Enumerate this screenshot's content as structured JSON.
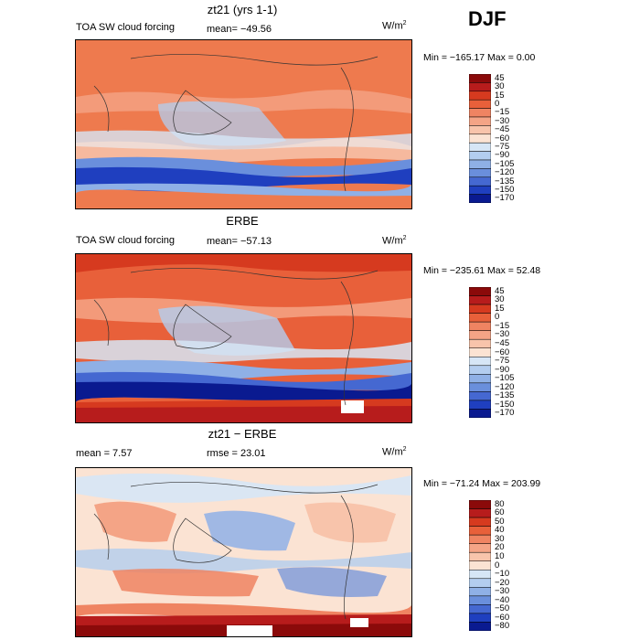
{
  "season": "DJF",
  "panels": [
    {
      "id": "model",
      "title": "zt21 (yrs 1-1)",
      "left_label": "TOA SW cloud forcing",
      "mid_label": "mean=  −49.56",
      "units": "W/m",
      "units_exp": "2",
      "minmax": "Min = −165.17 Max =    0.00",
      "levels": [
        "45",
        "30",
        "15",
        "0",
        "−15",
        "−30",
        "−45",
        "−60",
        "−75",
        "−90",
        "−105",
        "−120",
        "−135",
        "−150",
        "−170"
      ],
      "colors": [
        "#8b0a0a",
        "#b71c1c",
        "#d63a1f",
        "#e8603a",
        "#ef8462",
        "#f4a486",
        "#f8c4ab",
        "#fbe3d3",
        "#d6e6f6",
        "#b3cdef",
        "#8fb0e6",
        "#6a8fdc",
        "#4568d1",
        "#1f3fbf",
        "#0a1a90"
      ]
    },
    {
      "id": "obs",
      "title": "ERBE",
      "left_label": "TOA SW cloud forcing",
      "mid_label": "mean=  −57.13",
      "units": "W/m",
      "units_exp": "2",
      "minmax": "Min = −235.61 Max =   52.48",
      "levels": [
        "45",
        "30",
        "15",
        "0",
        "−15",
        "−30",
        "−45",
        "−60",
        "−75",
        "−90",
        "−105",
        "−120",
        "−135",
        "−150",
        "−170"
      ],
      "colors": [
        "#8b0a0a",
        "#b71c1c",
        "#d63a1f",
        "#e8603a",
        "#ef8462",
        "#f4a486",
        "#f8c4ab",
        "#fbe3d3",
        "#d6e6f6",
        "#b3cdef",
        "#8fb0e6",
        "#6a8fdc",
        "#4568d1",
        "#1f3fbf",
        "#0a1a90"
      ]
    },
    {
      "id": "diff",
      "title": "zt21 − ERBE",
      "left_label": "mean =     7.57",
      "mid_label": "rmse =   23.01",
      "units": "W/m",
      "units_exp": "2",
      "minmax": "Min = −71.24 Max = 203.99",
      "levels": [
        "80",
        "60",
        "50",
        "40",
        "30",
        "20",
        "10",
        "0",
        "−10",
        "−20",
        "−30",
        "−40",
        "−50",
        "−60",
        "−80"
      ],
      "colors": [
        "#8b0a0a",
        "#b71c1c",
        "#d63a1f",
        "#e8603a",
        "#ef8462",
        "#f4a486",
        "#f8c4ab",
        "#fbe3d3",
        "#d6e6f6",
        "#b3cdef",
        "#8fb0e6",
        "#6a8fdc",
        "#4568d1",
        "#1f3fbf",
        "#0a1a90"
      ]
    }
  ],
  "chart_data": {
    "type": "heatmap",
    "title": "DJF",
    "panels": [
      {
        "name": "zt21 (yrs 1-1)",
        "variable": "TOA SW cloud forcing",
        "mean": -49.56,
        "min": -165.17,
        "max": 0.0,
        "units": "W/m2"
      },
      {
        "name": "ERBE",
        "variable": "TOA SW cloud forcing",
        "mean": -57.13,
        "min": -235.61,
        "max": 52.48,
        "units": "W/m2"
      },
      {
        "name": "zt21 - ERBE",
        "mean": 7.57,
        "rmse": 23.01,
        "min": -71.24,
        "max": 203.99,
        "units": "W/m2"
      }
    ]
  }
}
